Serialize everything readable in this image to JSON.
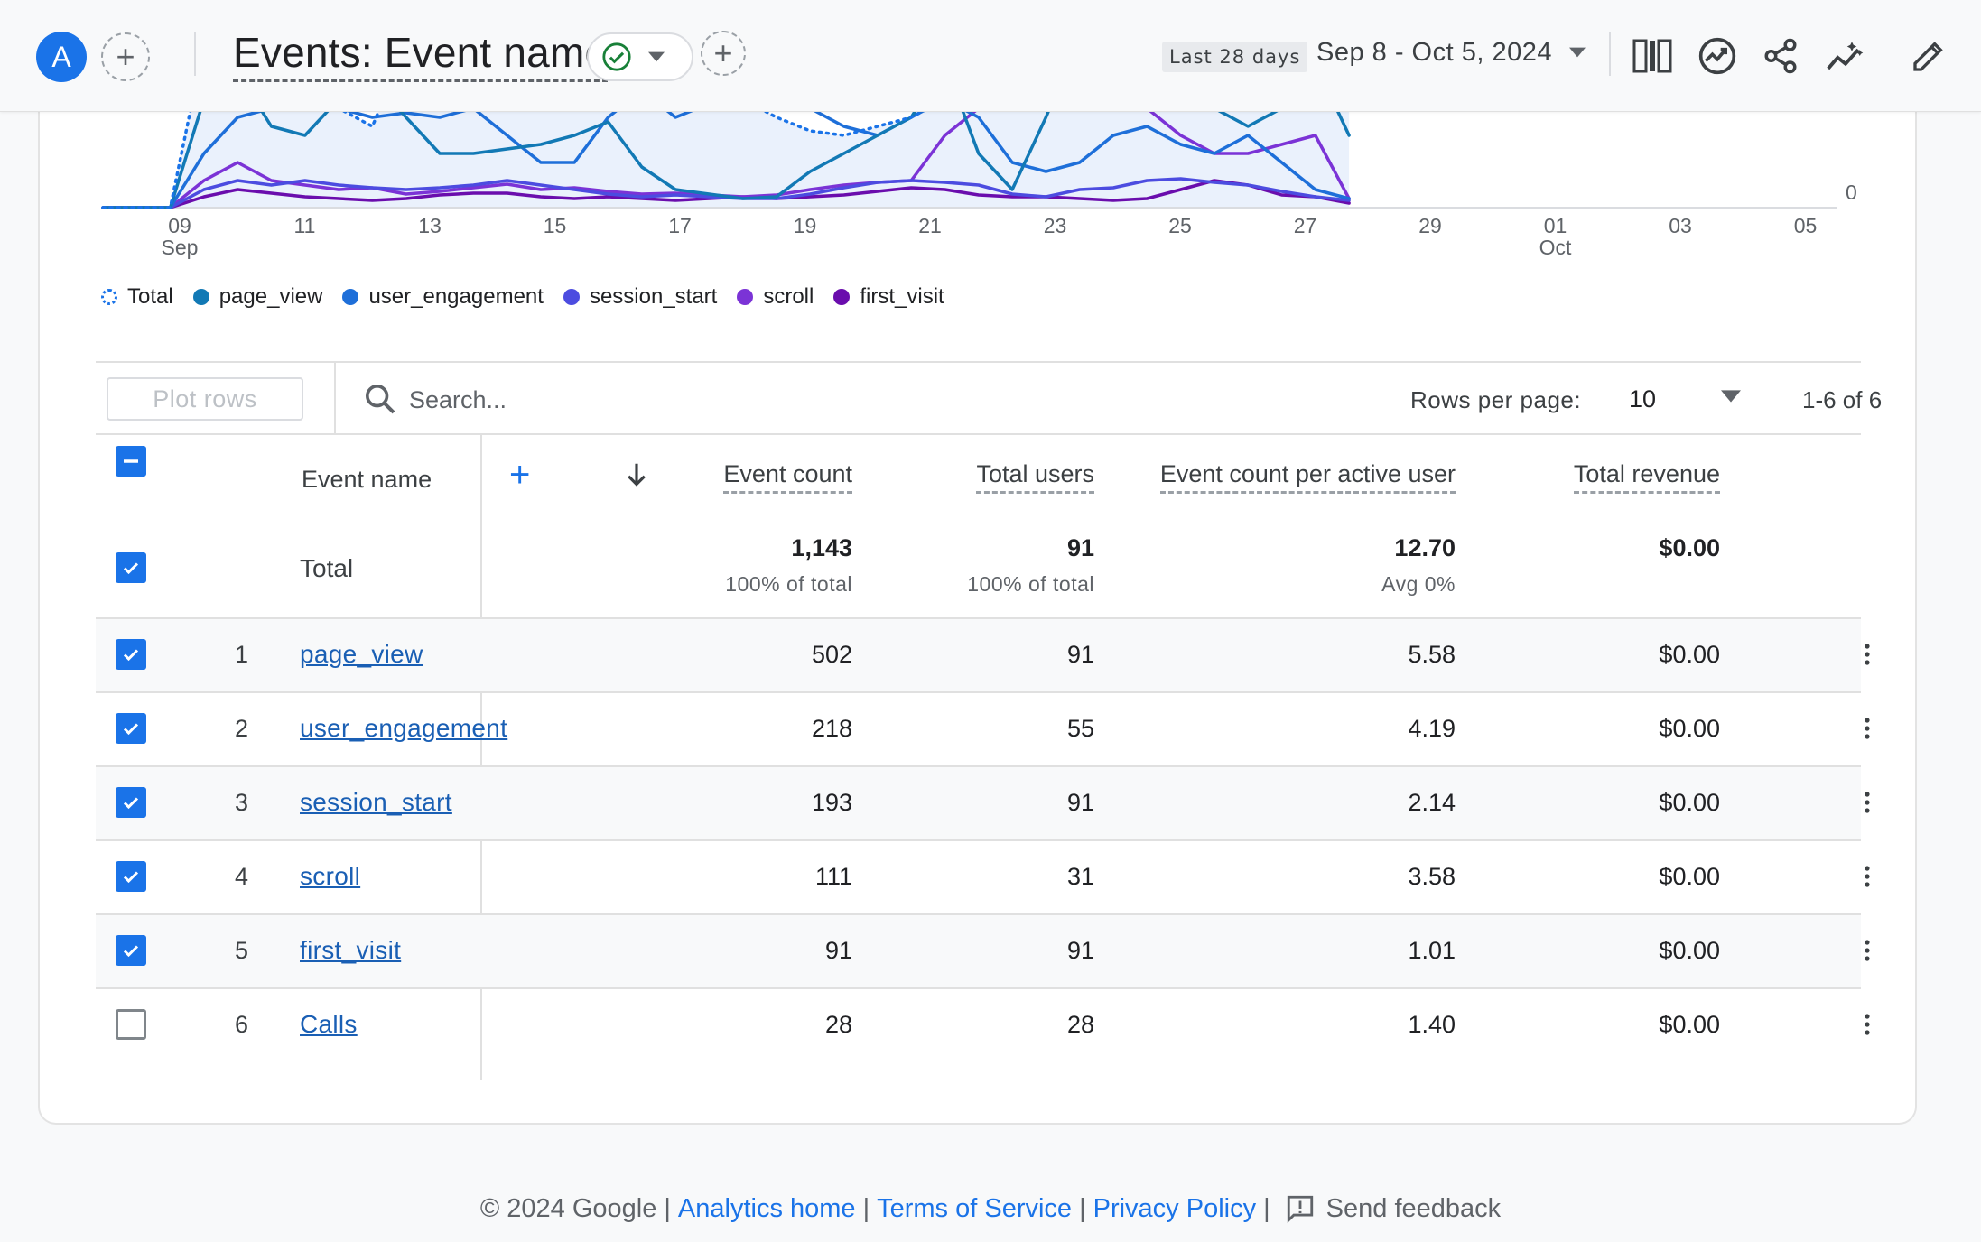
{
  "header": {
    "avatar_letter": "A",
    "title": "Events: Event name",
    "date_badge": "Last 28 days",
    "date_range": "Sep 8 - Oct 5, 2024"
  },
  "chart_data": {
    "type": "line",
    "x_ticks": [
      {
        "day": "09",
        "month": "Sep"
      },
      {
        "day": "11",
        "month": ""
      },
      {
        "day": "13",
        "month": ""
      },
      {
        "day": "15",
        "month": ""
      },
      {
        "day": "17",
        "month": ""
      },
      {
        "day": "19",
        "month": ""
      },
      {
        "day": "21",
        "month": ""
      },
      {
        "day": "23",
        "month": ""
      },
      {
        "day": "25",
        "month": ""
      },
      {
        "day": "27",
        "month": ""
      },
      {
        "day": "29",
        "month": ""
      },
      {
        "day": "01",
        "month": "Oct"
      },
      {
        "day": "03",
        "month": ""
      },
      {
        "day": "05",
        "month": ""
      }
    ],
    "y_axis_visible_tick": "0",
    "legend_position": "bottom-left",
    "series": [
      {
        "name": "Total",
        "color": "#1a73e8",
        "style": "dotted"
      },
      {
        "name": "page_view",
        "color": "#1279b5",
        "style": "solid"
      },
      {
        "name": "user_engagement",
        "color": "#1e6fd9",
        "style": "solid"
      },
      {
        "name": "session_start",
        "color": "#4c4ce0",
        "style": "solid"
      },
      {
        "name": "scroll",
        "color": "#7b33d6",
        "style": "solid"
      },
      {
        "name": "first_visit",
        "color": "#6a0dad",
        "style": "solid"
      }
    ]
  },
  "toolbar": {
    "plot_rows": "Plot rows",
    "search_placeholder": "Search...",
    "rows_per_page_label": "Rows per page:",
    "rows_per_page_value": "10",
    "pager": "1-6 of 6"
  },
  "table": {
    "headers": {
      "event_name": "Event name",
      "event_count": "Event count",
      "total_users": "Total users",
      "per_user": "Event count per active user",
      "revenue": "Total revenue"
    },
    "total": {
      "label": "Total",
      "event_count": "1,143",
      "event_count_sub": "100% of total",
      "total_users": "91",
      "total_users_sub": "100% of total",
      "per_user": "12.70",
      "per_user_sub": "Avg 0%",
      "revenue": "$0.00"
    },
    "rows": [
      {
        "idx": "1",
        "name": "page_view",
        "event_count": "502",
        "total_users": "91",
        "per_user": "5.58",
        "revenue": "$0.00",
        "checked": true
      },
      {
        "idx": "2",
        "name": "user_engagement",
        "event_count": "218",
        "total_users": "55",
        "per_user": "4.19",
        "revenue": "$0.00",
        "checked": true
      },
      {
        "idx": "3",
        "name": "session_start",
        "event_count": "193",
        "total_users": "91",
        "per_user": "2.14",
        "revenue": "$0.00",
        "checked": true
      },
      {
        "idx": "4",
        "name": "scroll",
        "event_count": "111",
        "total_users": "31",
        "per_user": "3.58",
        "revenue": "$0.00",
        "checked": true
      },
      {
        "idx": "5",
        "name": "first_visit",
        "event_count": "91",
        "total_users": "91",
        "per_user": "1.01",
        "revenue": "$0.00",
        "checked": true
      },
      {
        "idx": "6",
        "name": "Calls",
        "event_count": "28",
        "total_users": "28",
        "per_user": "1.40",
        "revenue": "$0.00",
        "checked": false
      }
    ]
  },
  "footer": {
    "copyright": "© 2024 Google",
    "analytics_home": "Analytics home",
    "terms": "Terms of Service",
    "privacy": "Privacy Policy",
    "feedback": "Send feedback"
  }
}
